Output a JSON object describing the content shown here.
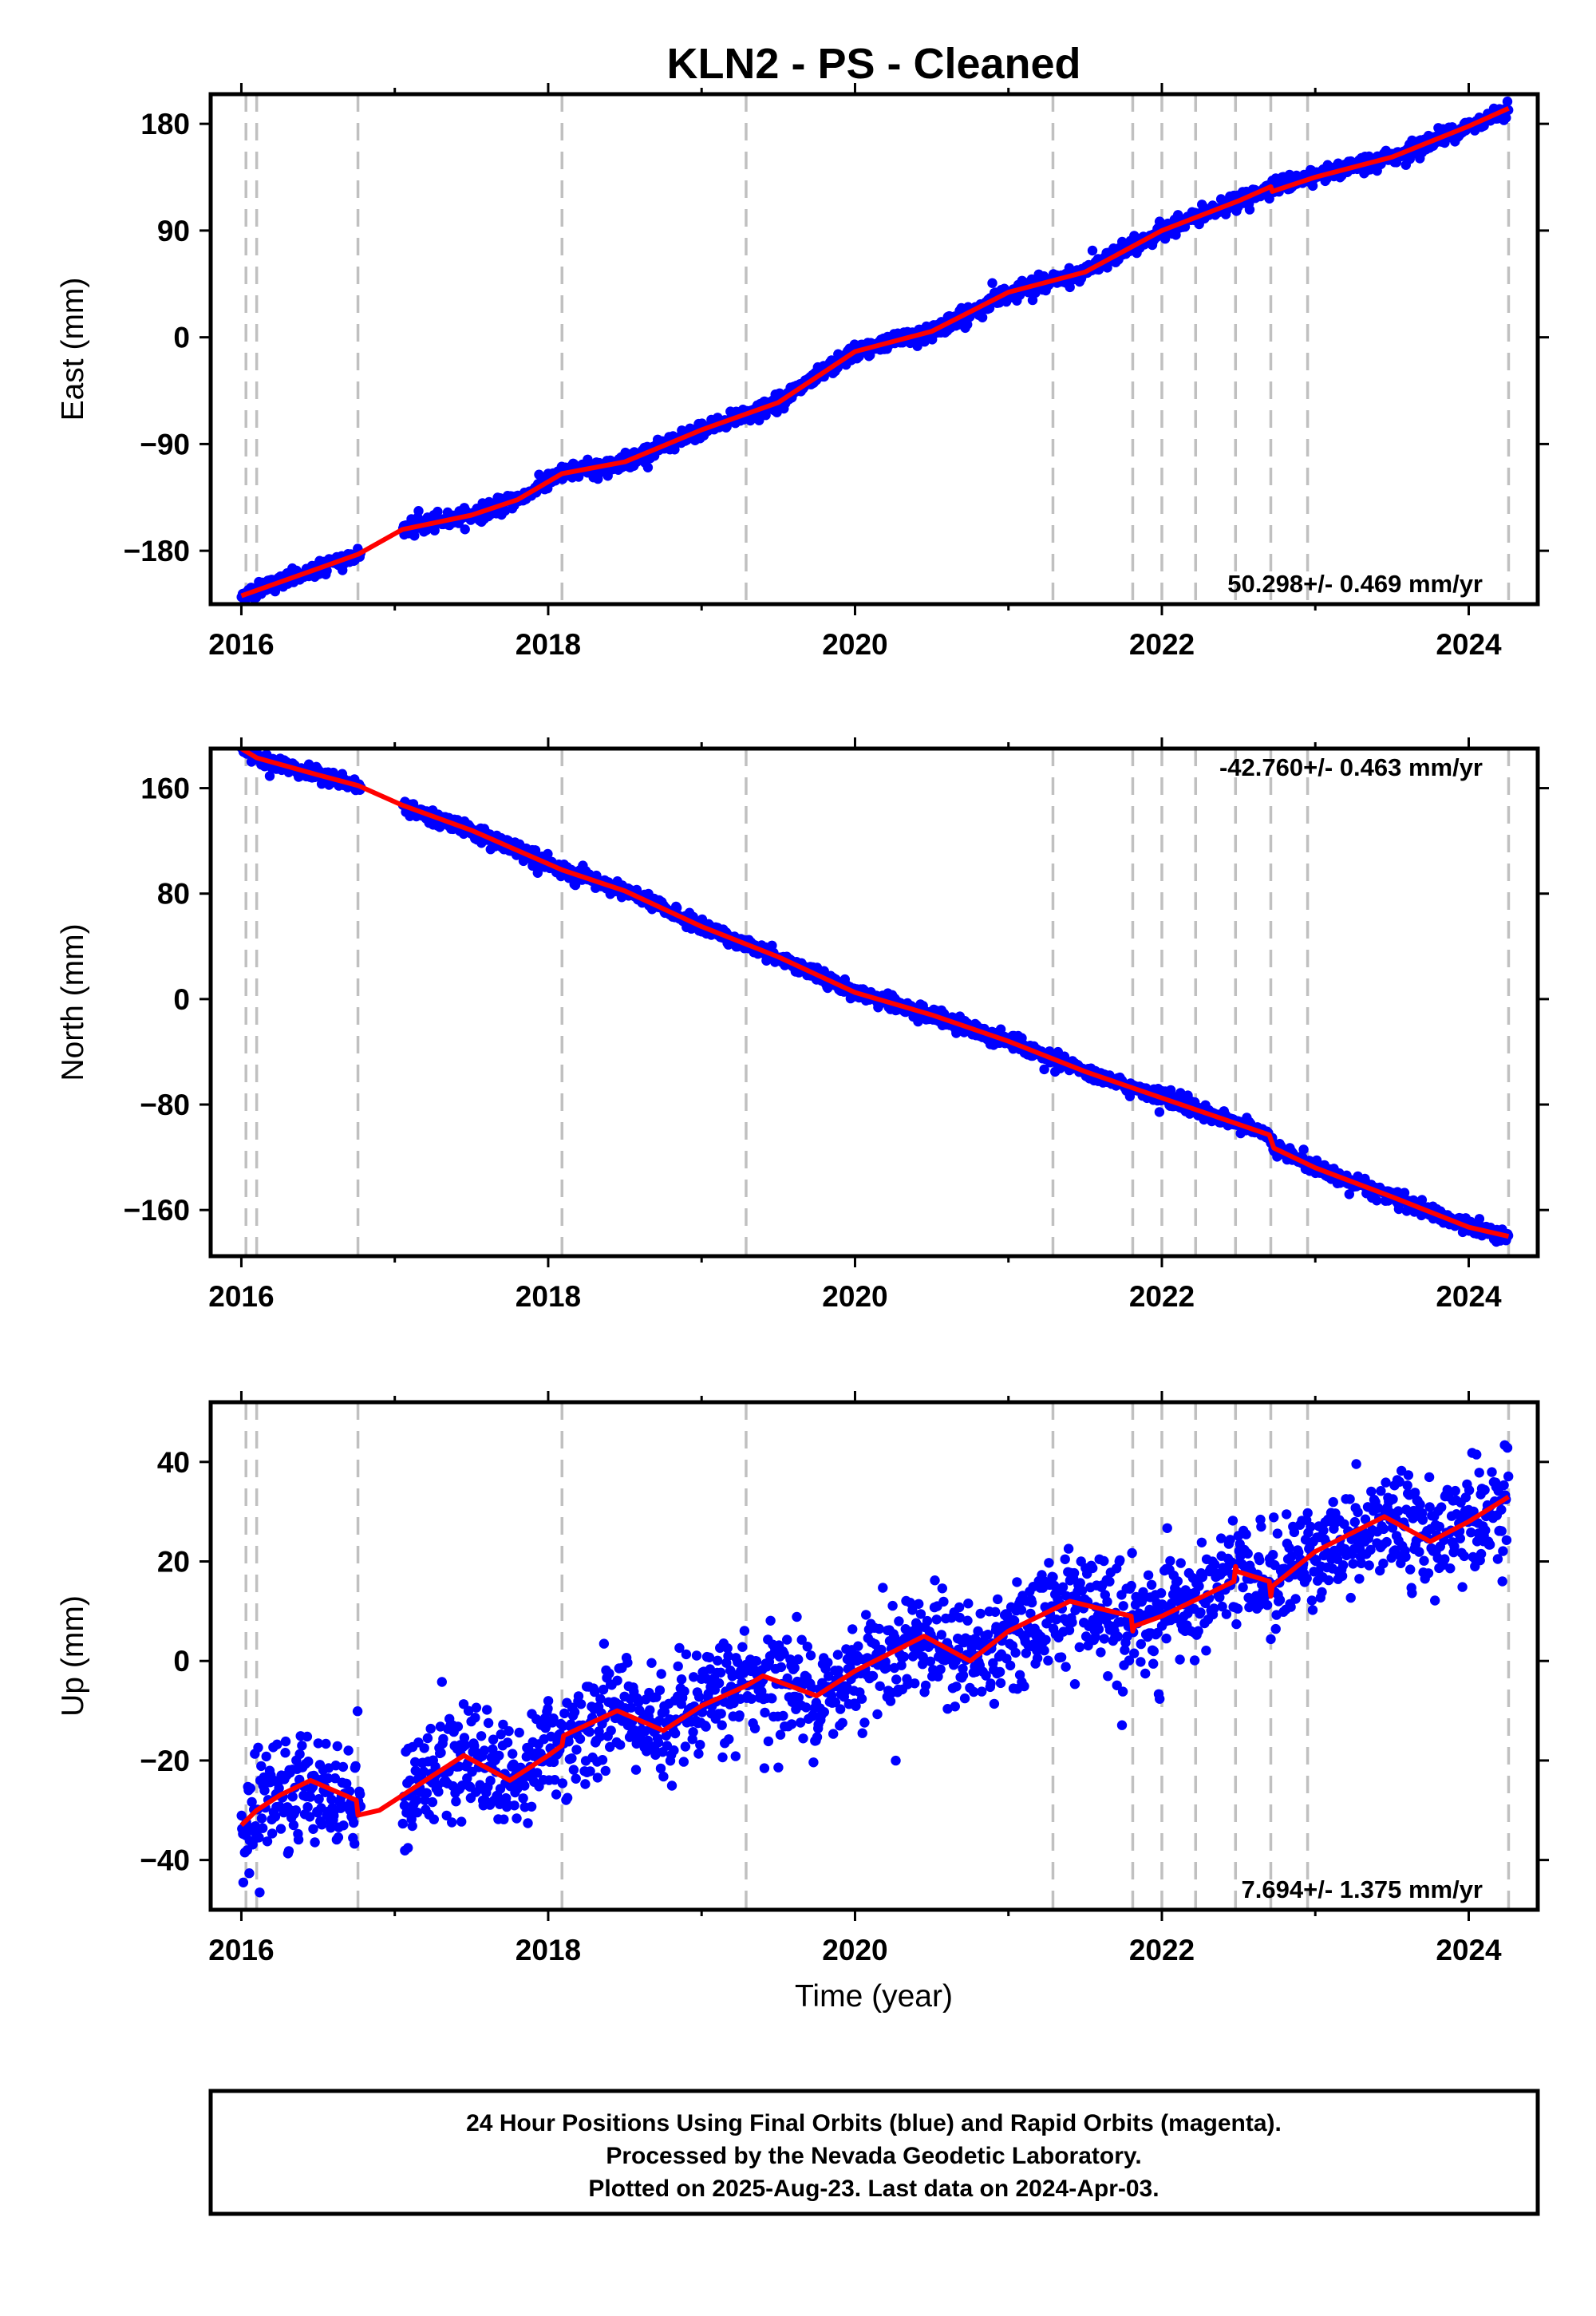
{
  "title": "KLN2  - PS - Cleaned",
  "xlabel": "Time (year)",
  "colors": {
    "points": "#0000ff",
    "model": "#ff0000",
    "events": "#c0c0c0",
    "frame": "#000000"
  },
  "footer": [
    "24 Hour Positions Using Final Orbits (blue) and Rapid Orbits (magenta).",
    "Processed by the Nevada Geodetic Laboratory.",
    "Plotted on 2025-Aug-23. Last data on 2024-Apr-03."
  ],
  "chart_data": [
    {
      "type": "scatter",
      "component": "east",
      "ylabel": "East (mm)",
      "rate_label": "50.298+/- 0.469 mm/yr",
      "xlim": [
        2015.8,
        2024.45
      ],
      "ylim": [
        -225,
        205
      ],
      "xticks": [
        2016,
        2018,
        2020,
        2022,
        2024
      ],
      "xtick_labels": [
        "2016",
        "2018",
        "2020",
        "2022",
        "2024"
      ],
      "yticks": [
        -180,
        -90,
        0,
        90,
        180
      ],
      "ytick_labels": [
        "−180",
        "−90",
        "0",
        "90",
        "180"
      ],
      "event_lines": [
        2016.03,
        2016.1,
        2016.76,
        2018.09,
        2019.29,
        2021.29,
        2021.81,
        2022.0,
        2022.22,
        2022.48,
        2022.71,
        2022.95,
        2024.26
      ],
      "gaps": [
        [
          2016.78,
          2017.05
        ]
      ],
      "noise": 3.2,
      "series": [
        {
          "name": "Final Orbits (blue)",
          "x": [
            2016.0,
            2016.5,
            2016.76,
            2017.05,
            2017.5,
            2017.8,
            2018.09,
            2018.5,
            2019.0,
            2019.5,
            2020.0,
            2020.5,
            2021.0,
            2021.5,
            2022.0,
            2022.5,
            2022.71,
            2023.0,
            2023.5,
            2024.0,
            2024.26
          ],
          "y": [
            -218,
            -195,
            -183,
            -162,
            -150,
            -137,
            -115,
            -105,
            -78,
            -55,
            -12,
            5,
            38,
            55,
            90,
            115,
            127,
            135,
            152,
            178,
            193
          ]
        },
        {
          "name": "Model",
          "x": [
            2016.0,
            2016.5,
            2016.76,
            2017.05,
            2017.5,
            2017.8,
            2018.09,
            2018.5,
            2019.0,
            2019.5,
            2020.0,
            2020.5,
            2021.0,
            2021.5,
            2022.0,
            2022.5,
            2022.71,
            2022.72,
            2023.0,
            2023.5,
            2024.0,
            2024.26
          ],
          "y": [
            -218,
            -195,
            -183,
            -162,
            -150,
            -137,
            -115,
            -105,
            -78,
            -55,
            -12,
            5,
            38,
            55,
            90,
            115,
            127,
            123,
            135,
            152,
            178,
            193
          ]
        }
      ]
    },
    {
      "type": "scatter",
      "component": "north",
      "ylabel": "North (mm)",
      "rate_label": "-42.760+/- 0.463 mm/yr",
      "xlim": [
        2015.8,
        2024.45
      ],
      "ylim": [
        -195,
        190
      ],
      "xticks": [
        2016,
        2018,
        2020,
        2022,
        2024
      ],
      "xtick_labels": [
        "2016",
        "2018",
        "2020",
        "2022",
        "2024"
      ],
      "yticks": [
        -160,
        -80,
        0,
        80,
        160
      ],
      "ytick_labels": [
        "−160",
        "−80",
        "0",
        "80",
        "160"
      ],
      "event_lines": [
        2016.03,
        2016.1,
        2016.76,
        2018.09,
        2019.29,
        2021.29,
        2021.81,
        2022.0,
        2022.22,
        2022.48,
        2022.71,
        2022.95,
        2024.26
      ],
      "gaps": [
        [
          2016.78,
          2017.05
        ]
      ],
      "noise": 2.6,
      "series": [
        {
          "name": "Final Orbits (blue)",
          "x": [
            2016.0,
            2016.1,
            2016.5,
            2016.76,
            2017.05,
            2017.5,
            2018.09,
            2018.5,
            2019.0,
            2019.5,
            2020.0,
            2020.5,
            2021.0,
            2021.5,
            2022.0,
            2022.5,
            2022.7,
            2022.73,
            2023.0,
            2023.5,
            2024.0,
            2024.26
          ],
          "y": [
            190,
            183,
            170,
            162,
            147,
            128,
            98,
            82,
            55,
            32,
            5,
            -12,
            -32,
            -55,
            -75,
            -95,
            -103,
            -113,
            -128,
            -150,
            -173,
            -180
          ]
        },
        {
          "name": "Model",
          "x": [
            2016.0,
            2016.1,
            2016.5,
            2016.76,
            2017.05,
            2017.5,
            2018.09,
            2018.5,
            2019.0,
            2019.5,
            2020.0,
            2020.5,
            2021.0,
            2021.5,
            2022.0,
            2022.5,
            2022.7,
            2022.73,
            2023.0,
            2023.5,
            2024.0,
            2024.26
          ],
          "y": [
            190,
            183,
            170,
            162,
            147,
            128,
            98,
            82,
            55,
            32,
            5,
            -12,
            -32,
            -55,
            -75,
            -95,
            -103,
            -113,
            -128,
            -150,
            -173,
            -180
          ]
        }
      ]
    },
    {
      "type": "scatter",
      "component": "up",
      "ylabel": "Up (mm)",
      "rate_label": "7.694+/- 1.375 mm/yr",
      "xlim": [
        2015.8,
        2024.45
      ],
      "ylim": [
        -50,
        52
      ],
      "xticks": [
        2016,
        2018,
        2020,
        2022,
        2024
      ],
      "xtick_labels": [
        "2016",
        "2018",
        "2020",
        "2022",
        "2024"
      ],
      "yticks": [
        -40,
        -20,
        0,
        20,
        40
      ],
      "ytick_labels": [
        "−40",
        "−20",
        "0",
        "20",
        "40"
      ],
      "event_lines": [
        2016.03,
        2016.1,
        2016.76,
        2018.09,
        2019.29,
        2021.29,
        2021.81,
        2022.0,
        2022.22,
        2022.48,
        2022.71,
        2022.95,
        2024.26
      ],
      "gaps": [
        [
          2016.78,
          2017.05
        ]
      ],
      "noise": 5.2,
      "series": [
        {
          "name": "Final Orbits (blue)",
          "x": [
            2016.0,
            2016.25,
            2016.45,
            2016.76,
            2017.05,
            2017.45,
            2017.75,
            2018.09,
            2018.45,
            2018.75,
            2019.0,
            2019.4,
            2019.75,
            2020.0,
            2020.45,
            2020.75,
            2021.0,
            2021.4,
            2021.81,
            2022.0,
            2022.48,
            2022.71,
            2023.0,
            2023.45,
            2023.75,
            2024.0,
            2024.26
          ],
          "y": [
            -33,
            -28,
            -24,
            -29,
            -26,
            -19,
            -24,
            -16,
            -10,
            -14,
            -9,
            -3,
            -7,
            -2,
            5,
            0,
            6,
            12,
            7,
            9,
            16,
            16,
            22,
            29,
            24,
            28,
            33
          ]
        },
        {
          "name": "Model",
          "x": [
            2016.0,
            2016.1,
            2016.25,
            2016.45,
            2016.75,
            2016.76,
            2016.9,
            2017.05,
            2017.45,
            2017.75,
            2018.0,
            2018.09,
            2018.1,
            2018.45,
            2018.75,
            2019.0,
            2019.29,
            2019.4,
            2019.75,
            2020.0,
            2020.45,
            2020.75,
            2021.0,
            2021.4,
            2021.8,
            2021.81,
            2021.82,
            2022.0,
            2022.47,
            2022.48,
            2022.49,
            2022.7,
            2022.71,
            2022.72,
            2023.0,
            2023.45,
            2023.75,
            2024.0,
            2024.26
          ],
          "y": [
            -33,
            -30,
            -27,
            -24,
            -28,
            -31,
            -30,
            -27,
            -19,
            -24,
            -19,
            -17,
            -15,
            -10,
            -14,
            -9,
            -5,
            -3,
            -7,
            -2,
            5,
            0,
            6,
            12,
            9,
            6,
            7,
            9,
            16,
            19,
            18,
            16,
            13,
            15,
            22,
            29,
            24,
            28,
            33
          ]
        }
      ]
    }
  ]
}
